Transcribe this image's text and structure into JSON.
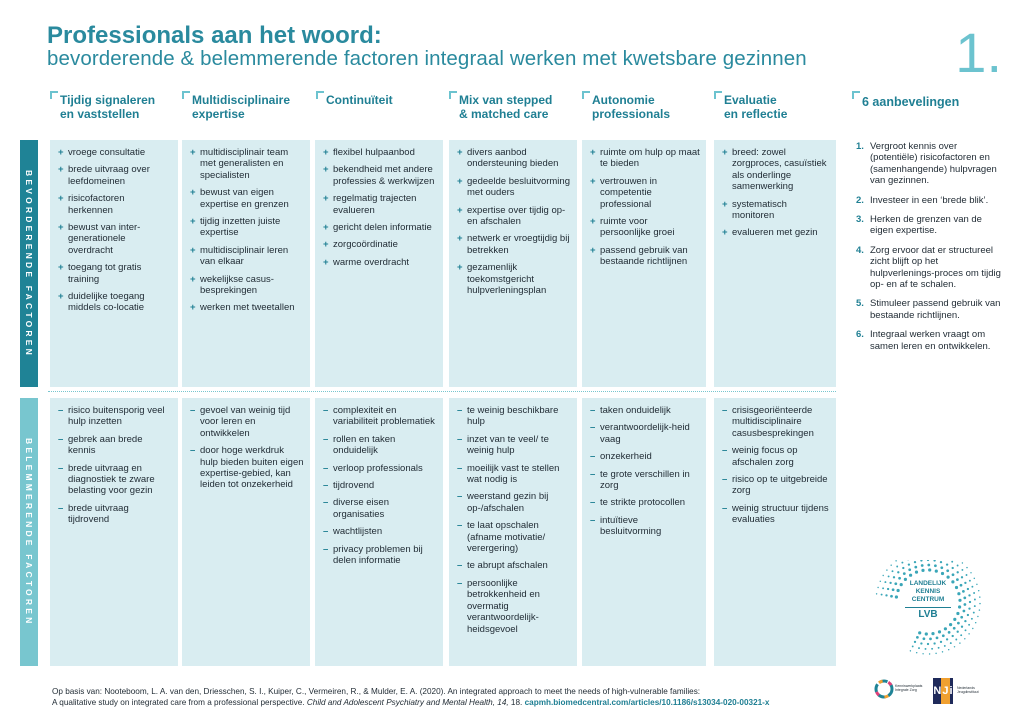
{
  "header": {
    "title": "Professionals aan het woord:",
    "subtitle": "bevorderende & belemmerende factoren integraal werken met kwetsbare gezinnen",
    "number": "1."
  },
  "bands": {
    "positive_label": "BEVORDERENDE FACTOREN",
    "negative_label": "BELEMMERENDE FACTOREN"
  },
  "columns": [
    {
      "title_lines": [
        "Tijdig signaleren",
        "en vaststellen"
      ],
      "positive": [
        "vroege consultatie",
        "brede uitvraag over leefdomeinen",
        "risicofactoren herkennen",
        "bewust van inter-generationele overdracht",
        "toegang tot gratis training",
        "duidelijke toegang middels co-locatie"
      ],
      "negative": [
        "risico buitensporig veel hulp inzetten",
        "gebrek aan brede kennis",
        "brede uitvraag en diagnostiek te zware belasting voor gezin",
        "brede uitvraag tijdrovend"
      ]
    },
    {
      "title_lines": [
        "Multidisciplinaire",
        "expertise"
      ],
      "positive": [
        "multidisciplinair team met generalisten en specialisten",
        "bewust van eigen expertise en grenzen",
        "tijdig inzetten juiste expertise",
        "multidisciplinair leren van elkaar",
        "wekelijkse casus-besprekingen",
        "werken met tweetallen"
      ],
      "negative": [
        "gevoel van weinig tijd voor leren en ontwikkelen",
        "door hoge werkdruk hulp bieden buiten eigen expertise-gebied, kan leiden tot onzekerheid"
      ]
    },
    {
      "title_lines": [
        "Continuïteit"
      ],
      "positive": [
        "flexibel hulpaanbod",
        "bekendheid met andere professies & werkwijzen",
        "regelmatig trajecten evalueren",
        "gericht delen informatie",
        "zorgcoördinatie",
        "warme overdracht"
      ],
      "negative": [
        "complexiteit en variabiliteit problematiek",
        "rollen en taken onduidelijk",
        "verloop professionals",
        "tijdrovend",
        "diverse eisen organisaties",
        "wachtlijsten",
        "privacy problemen bij delen informatie"
      ]
    },
    {
      "title_lines": [
        "Mix van stepped",
        "& matched care"
      ],
      "positive": [
        "divers aanbod ondersteuning bieden",
        "gedeelde besluitvorming met ouders",
        "expertise over tijdig op- en afschalen",
        "netwerk er vroegtijdig bij betrekken",
        "gezamenlijk toekomstgericht hulpverleningsplan"
      ],
      "negative": [
        "te weinig beschikbare hulp",
        "inzet van te veel/ te weinig hulp",
        "moeilijk vast te stellen wat nodig is",
        "weerstand gezin bij op-/afschalen",
        "te laat opschalen (afname motivatie/ verergering)",
        "te abrupt afschalen",
        "persoonlijke betrokkenheid en overmatig verantwoordelijk-heidsgevoel"
      ]
    },
    {
      "title_lines": [
        "Autonomie",
        "professionals"
      ],
      "positive": [
        "ruimte om hulp op maat te bieden",
        "vertrouwen in competentie professional",
        "ruimte voor persoonlijke groei",
        "passend gebruik van bestaande richtlijnen"
      ],
      "negative": [
        "taken onduidelijk",
        "verantwoordelijk-heid vaag",
        "onzekerheid",
        "te grote verschillen in zorg",
        "te strikte protocollen",
        "intuïtieve besluitvorming"
      ]
    },
    {
      "title_lines": [
        "Evaluatie",
        "en reflectie"
      ],
      "positive": [
        "breed: zowel zorgproces, casuïstiek als onderlinge samenwerking",
        "systematisch monitoren",
        "evalueren met gezin"
      ],
      "negative": [
        "crisisgeoriënteerde multidisciplinaire casusbesprekingen",
        "weinig focus op afschalen zorg",
        "risico op te uitgebreide zorg",
        "weinig structuur tijdens evaluaties"
      ]
    }
  ],
  "recommendations": {
    "title": "6 aanbevelingen",
    "items": [
      {
        "n": "1.",
        "text": "Vergroot kennis over (potentiële) risicofactoren en (samenhangende) hulpvragen van gezinnen."
      },
      {
        "n": "2.",
        "text": "Investeer in een ‘brede blik’."
      },
      {
        "n": "3.",
        "text": "Herken de grenzen van de eigen expertise."
      },
      {
        "n": "4.",
        "text": "Zorg ervoor dat er structureel zicht blijft op het hulpverlenings-proces om tijdig op- en af te schalen."
      },
      {
        "n": "5.",
        "text": "Stimuleer passend gebruik van bestaande richtlijnen."
      },
      {
        "n": "6.",
        "text": "Integraal werken vraagt om samen leren en ontwikkelen."
      }
    ]
  },
  "logo_lkc": {
    "line1": "LANDELIJK",
    "line2": "KENNIS",
    "line3": "CENTRUM",
    "acronym": "LVB"
  },
  "footer": {
    "line1": "Op basis van: Nooteboom, L. A. van den, Driesschen, S. I., Kuiper, C., Vermeiren, R., & Mulder, E. A. (2020). An integrated approach to meet the needs of high-vulnerable families:",
    "line2_plain": "A qualitative study on integrated care from a professional perspective. ",
    "line2_journal": "Child and Adolescent Psychiatry and Mental Health, 14,",
    "line2_page": " 18. ",
    "link": "capmh.biomedcentral.com/articles/10.1186/s13034-020-00321-x"
  },
  "logo_circle": {
    "text": "Kenniswerkplaats Integrale Zorg"
  },
  "logo_nji": {
    "mark_n": "N",
    "mark_j": "J",
    "mark_i": "i",
    "text": "Nederlands Jeugdinstituut"
  },
  "colors": {
    "primary": "#1f8396",
    "accent": "#78c6cf",
    "cell": "#d9edf1"
  }
}
